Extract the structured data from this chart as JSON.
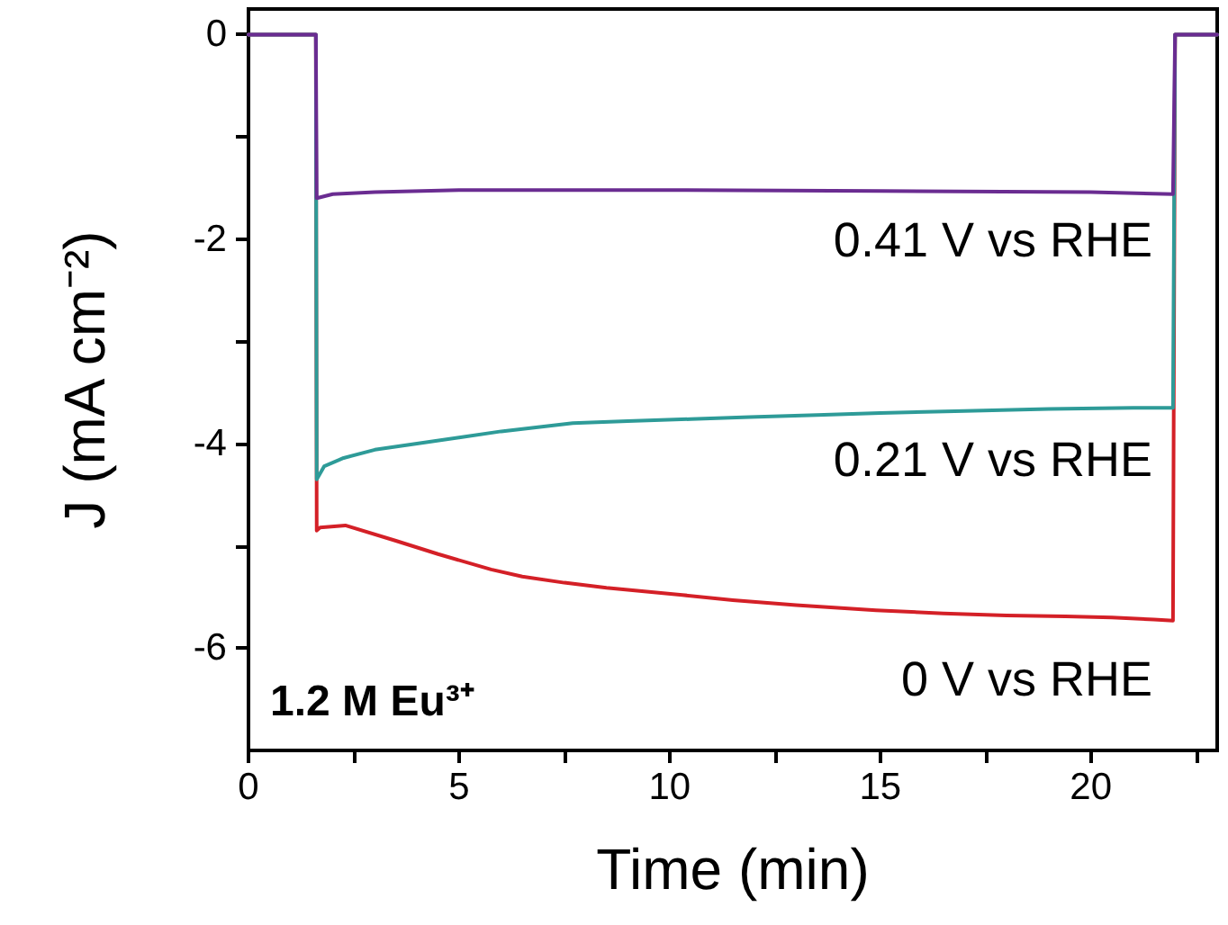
{
  "chart_data": {
    "type": "line",
    "xlabel": "Time (min)",
    "ylabel": "J (mA cm⁻²)",
    "xlim": [
      0,
      23
    ],
    "ylim": [
      -7,
      0.25
    ],
    "xticks": [
      0,
      {
        "value": 2.5,
        "label": null
      },
      5,
      {
        "value": 7.5,
        "label": null
      },
      10,
      {
        "value": 12.5,
        "label": null
      },
      15,
      {
        "value": 17.5,
        "label": null
      },
      20,
      {
        "value": 22.5,
        "label": null
      }
    ],
    "yticks": [
      0,
      {
        "value": -1,
        "label": null
      },
      -2,
      {
        "value": -3,
        "label": null
      },
      -4,
      {
        "value": -5,
        "label": null
      },
      -6
    ],
    "grid": false,
    "marker": "none",
    "line_style": "solid",
    "series": [
      {
        "color": "#d42027",
        "x": [
          0,
          1.6,
          1.62,
          1.7,
          2.3,
          3.5,
          4.5,
          5.76,
          6.5,
          7.5,
          8.5,
          10.3,
          11.5,
          13,
          14.9,
          16.5,
          18,
          19.4,
          20.5,
          21.5,
          21.95,
          22,
          23
        ],
        "values": [
          0,
          0,
          -4.85,
          -4.82,
          -4.8,
          -4.95,
          -5.08,
          -5.23,
          -5.3,
          -5.36,
          -5.41,
          -5.48,
          -5.53,
          -5.58,
          -5.63,
          -5.66,
          -5.68,
          -5.69,
          -5.7,
          -5.72,
          -5.73,
          0,
          0
        ]
      },
      {
        "color": "#2e9b98",
        "x": [
          0,
          1.6,
          1.62,
          1.8,
          2.26,
          3,
          4,
          5,
          6,
          7.7,
          9,
          10.5,
          11.9,
          13.5,
          15,
          17,
          19,
          21,
          21.95,
          22,
          23
        ],
        "values": [
          0,
          0,
          -4.35,
          -4.22,
          -4.14,
          -4.06,
          -4.0,
          -3.94,
          -3.88,
          -3.8,
          -3.78,
          -3.76,
          -3.74,
          -3.72,
          -3.7,
          -3.68,
          -3.66,
          -3.65,
          -3.65,
          0,
          0
        ]
      },
      {
        "color": "#6a2c91",
        "x": [
          0,
          1.6,
          1.62,
          2,
          3,
          5,
          10,
          15,
          20,
          21.95,
          22,
          23
        ],
        "values": [
          0,
          0,
          -1.6,
          -1.56,
          -1.54,
          -1.52,
          -1.52,
          -1.53,
          -1.54,
          -1.56,
          0,
          0
        ]
      }
    ],
    "annotations": [
      "0.41 V vs RHE",
      "0.21 V vs RHE",
      "0 V vs RHE",
      "1.2 M Eu³⁺"
    ]
  }
}
